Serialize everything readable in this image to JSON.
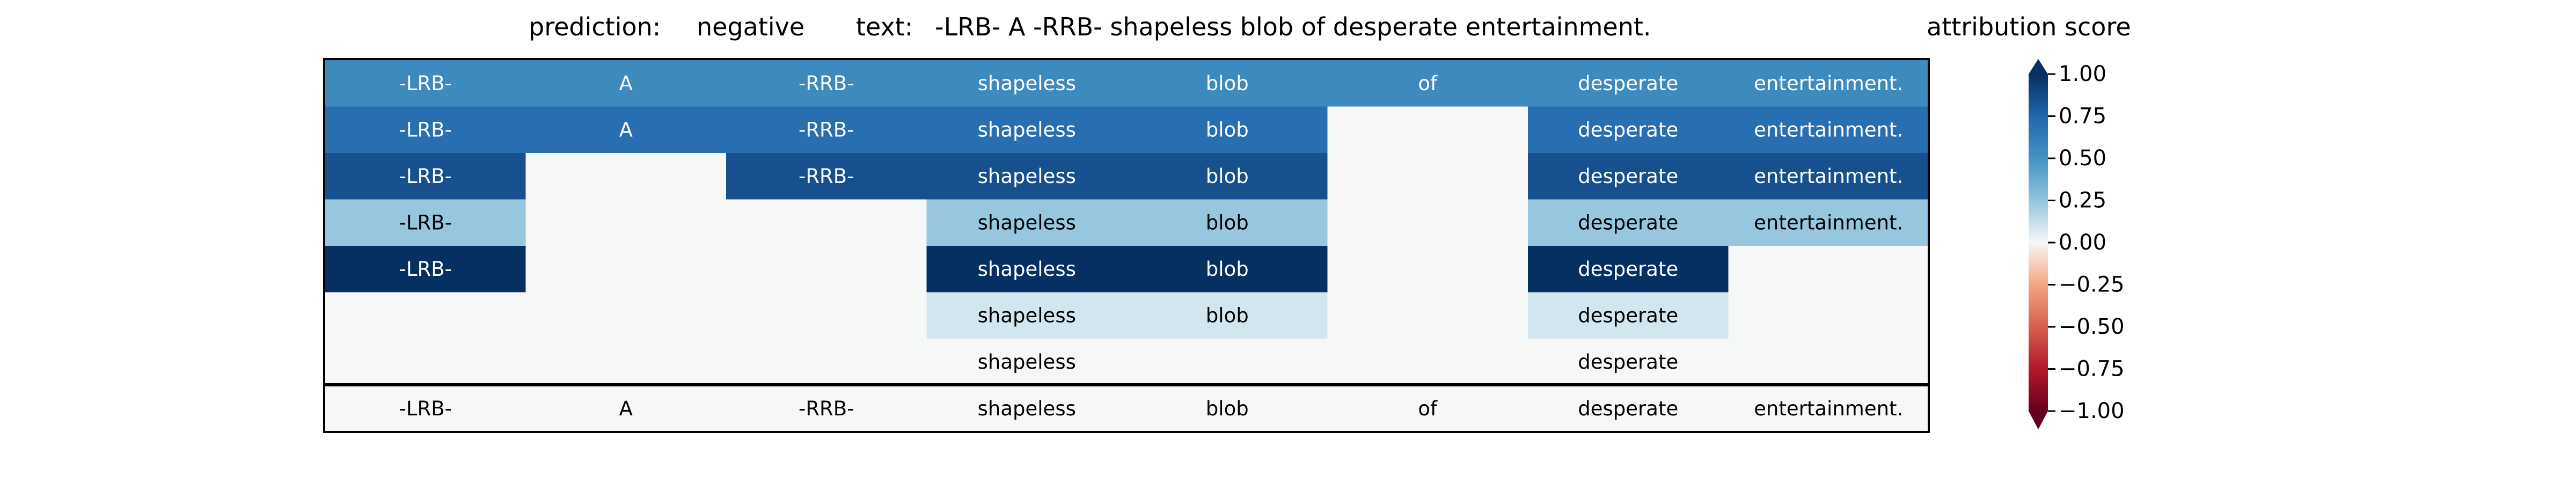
{
  "header": {
    "prediction_label": "prediction:",
    "prediction_value": "negative",
    "text_label": "text:",
    "text_value": "-LRB- A -RRB- shapeless blob of desperate entertainment."
  },
  "colorbar": {
    "title": "attribution score",
    "ticks": [
      "1.00",
      "0.75",
      "0.50",
      "0.25",
      "0.00",
      "−0.25",
      "−0.50",
      "−0.75",
      "−1.00"
    ],
    "tick_values": [
      1.0,
      0.75,
      0.5,
      0.25,
      0.0,
      -0.25,
      -0.5,
      -0.75,
      -1.0
    ],
    "colormap": "RdBu",
    "range": [
      -1,
      1
    ]
  },
  "chart_data": {
    "type": "heatmap",
    "title": "",
    "tokens": [
      "-LRB-",
      "A",
      "-RRB-",
      "shapeless",
      "blob",
      "of",
      "desperate",
      "entertainment."
    ],
    "rows": [
      [
        0.55,
        0.55,
        0.55,
        0.55,
        0.55,
        0.55,
        0.55,
        0.55
      ],
      [
        0.7,
        0.7,
        0.7,
        0.7,
        0.7,
        0.0,
        0.7,
        0.7
      ],
      [
        0.85,
        0.0,
        0.85,
        0.85,
        0.85,
        0.0,
        0.85,
        0.85
      ],
      [
        0.3,
        0.0,
        0.0,
        0.3,
        0.3,
        0.0,
        0.3,
        0.3
      ],
      [
        1.0,
        0.0,
        0.0,
        1.0,
        1.0,
        0.0,
        1.0,
        0.0
      ],
      [
        0.0,
        0.0,
        0.0,
        0.12,
        0.12,
        0.0,
        0.12,
        0.0
      ],
      [
        0.0,
        0.0,
        0.0,
        0.0,
        0.0,
        0.0,
        0.0,
        0.0
      ]
    ],
    "row_labels_shown": [
      [
        true,
        true,
        true,
        true,
        true,
        true,
        true,
        true
      ],
      [
        true,
        true,
        true,
        true,
        true,
        false,
        true,
        true
      ],
      [
        true,
        false,
        true,
        true,
        true,
        false,
        true,
        true
      ],
      [
        true,
        false,
        false,
        true,
        true,
        false,
        true,
        true
      ],
      [
        true,
        false,
        false,
        true,
        true,
        false,
        true,
        false
      ],
      [
        false,
        false,
        false,
        true,
        true,
        false,
        true,
        false
      ],
      [
        false,
        false,
        false,
        true,
        false,
        false,
        true,
        false
      ]
    ],
    "bottom_row": [
      "-LRB-",
      "A",
      "-RRB-",
      "shapeless",
      "blob",
      "of",
      "desperate",
      "entertainment."
    ],
    "colorbar_range": [
      -1,
      1
    ]
  }
}
